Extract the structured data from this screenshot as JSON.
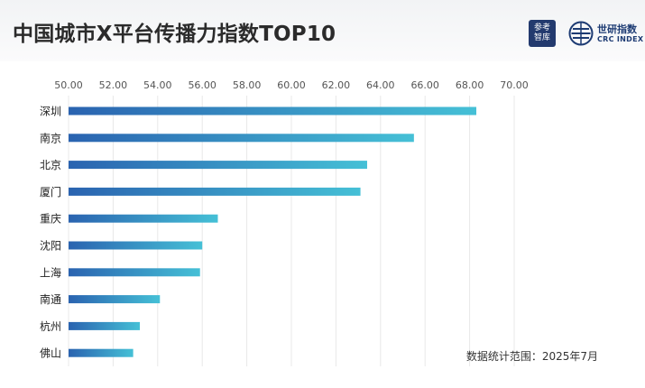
{
  "title": "中国城市X平台传播力指数TOP10",
  "logos": {
    "left_line1": "参考",
    "left_line2": "智库",
    "right_cn": "世研指数",
    "right_en": "CRC INDEX"
  },
  "note": "数据统计范围：2025年7月",
  "colors": {
    "bar_start": "#2a63b0",
    "bar_end": "#45c0d6",
    "grid": "#e8e8e8",
    "tick_text": "#555555",
    "label_text": "#222222"
  },
  "chart_data": {
    "type": "bar",
    "orientation": "horizontal",
    "categories": [
      "深圳",
      "南京",
      "北京",
      "厦门",
      "重庆",
      "沈阳",
      "上海",
      "南通",
      "杭州",
      "佛山"
    ],
    "values": [
      68.3,
      65.5,
      63.4,
      63.1,
      56.7,
      56.0,
      55.9,
      54.1,
      53.2,
      52.9
    ],
    "xlim": [
      50,
      70
    ],
    "ticks": [
      "50.00",
      "52.00",
      "54.00",
      "56.00",
      "58.00",
      "60.00",
      "62.00",
      "64.00",
      "66.00",
      "68.00",
      "70.00"
    ],
    "grid": true
  }
}
